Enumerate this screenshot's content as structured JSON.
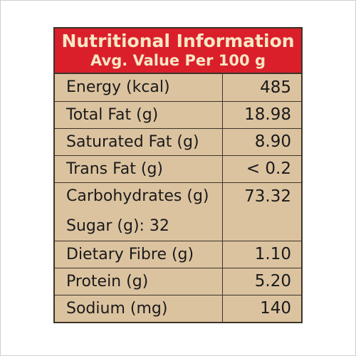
{
  "header": {
    "title": "Nutritional Information",
    "subtitle": "Avg. Value Per 100 g"
  },
  "rows": [
    {
      "label": "Energy (kcal)",
      "value": "485"
    },
    {
      "label": "Total Fat (g)",
      "value": "18.98"
    },
    {
      "label": "Saturated Fat (g)",
      "value": "8.90"
    },
    {
      "label": "Trans Fat (g)",
      "value": "< 0.2"
    },
    {
      "label": "Carbohydrates (g)",
      "value": "73.32",
      "sub": "Sugar (g): 32"
    },
    {
      "label": "Dietary Fibre (g)",
      "value": "1.10"
    },
    {
      "label": "Protein (g)",
      "value": "5.20"
    },
    {
      "label": "Sodium (mg)",
      "value": "140"
    }
  ],
  "colors": {
    "header_bg": "#da1f2b",
    "header_text": "#f7e6c4",
    "table_bg": "#dcc3a0",
    "border": "#3c3428"
  }
}
